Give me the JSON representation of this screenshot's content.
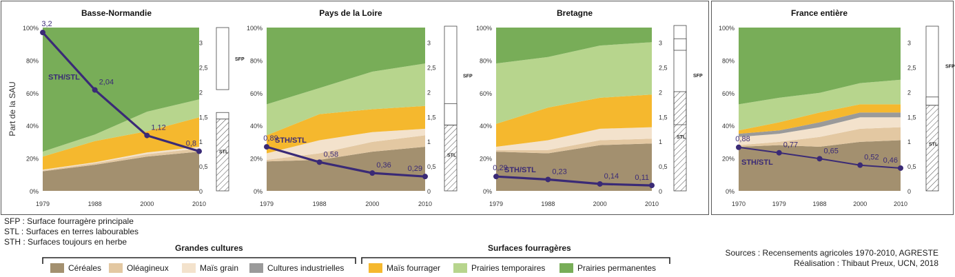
{
  "colors": {
    "cereales": "#a3906f",
    "oleagineux": "#e3c8a2",
    "mais_grain": "#f3e2cc",
    "cultures_industrielles": "#9a9a9a",
    "mais_fourrager": "#f5b82e",
    "prairies_temporaires": "#b7d58d",
    "prairies_permanentes": "#78ad58",
    "line": "#3a2a76",
    "frame": "#555555"
  },
  "notes": [
    "SFP : Surface fourragère principale",
    "STL : Surfaces en terres labourables",
    "STH : Surfaces toujours en herbe"
  ],
  "legend": {
    "groups": [
      {
        "title": "Grandes cultures",
        "items": [
          {
            "label": "Céréales",
            "key": "cereales"
          },
          {
            "label": "Oléagineux",
            "key": "oleagineux"
          },
          {
            "label": "Maïs grain",
            "key": "mais_grain"
          },
          {
            "label": "Cultures industrielles",
            "key": "cultures_industrielles"
          }
        ]
      },
      {
        "title": "Surfaces fourragères",
        "items": [
          {
            "label": "Maïs fourrager",
            "key": "mais_fourrager"
          },
          {
            "label": "Prairies temporaires",
            "key": "prairies_temporaires"
          },
          {
            "label": "Prairies permanentes",
            "key": "prairies_permanentes"
          }
        ]
      }
    ]
  },
  "sources": {
    "line1": "Sources : Recensements agricoles 1970-2010, AGRESTE",
    "line2": "Réalisation : Thibaut Preux, UCN, 2018"
  },
  "chart_data": [
    {
      "type": "area",
      "title": "Basse-Normandie",
      "ylabel": "Part de la SAU",
      "x": [
        "1979",
        "1988",
        "2000",
        "2010"
      ],
      "ylim": [
        0,
        100
      ],
      "y_ticks": [
        "0%",
        "20%",
        "40%",
        "60%",
        "80%",
        "100%"
      ],
      "y2_ticks": [
        "0",
        "0,5",
        "1",
        "1,5",
        "2",
        "2,5",
        "3"
      ],
      "y2lim": [
        0,
        3.3
      ],
      "series": [
        {
          "key": "cereales",
          "values": [
            12,
            16,
            21,
            24
          ]
        },
        {
          "key": "oleagineux",
          "values": [
            0.5,
            1,
            1.5,
            2
          ]
        },
        {
          "key": "mais_grain",
          "values": [
            0.5,
            0.5,
            1,
            1
          ]
        },
        {
          "key": "cultures_industrielles",
          "values": [
            0,
            0,
            0,
            0
          ]
        },
        {
          "key": "mais_fourrager",
          "values": [
            8,
            13,
            13,
            18
          ]
        },
        {
          "key": "prairies_temporaires",
          "values": [
            3,
            4,
            12,
            11
          ]
        },
        {
          "key": "prairies_permanentes",
          "values": [
            76,
            65.5,
            51.5,
            44
          ]
        }
      ],
      "ratio": {
        "label": "STH/STL",
        "values": [
          3.2,
          2.04,
          1.12,
          0.8
        ],
        "labels": [
          "3,2",
          "2,04",
          "1,12",
          "0,8"
        ],
        "label_series_at": 0
      },
      "bar": {
        "sfp_label": "SFP",
        "stl_label": "STL",
        "sfp_range": [
          0.62,
          1.0
        ],
        "stl_range": [
          0,
          0.44
        ],
        "gap_range": [
          0.44,
          0.48
        ]
      }
    },
    {
      "type": "area",
      "title": "Pays de la Loire",
      "ylabel": "",
      "x": [
        "1979",
        "1988",
        "2000",
        "2010"
      ],
      "ylim": [
        0,
        100
      ],
      "y_ticks": [
        "0%",
        "20%",
        "40%",
        "60%",
        "80%",
        "100%"
      ],
      "y2_ticks": [
        "0",
        "0,5",
        "1",
        "1,5",
        "2",
        "2,5",
        "3"
      ],
      "y2lim": [
        0,
        3.3
      ],
      "series": [
        {
          "key": "cereales",
          "values": [
            18,
            19,
            24,
            27
          ]
        },
        {
          "key": "oleagineux",
          "values": [
            1,
            4,
            6,
            7
          ]
        },
        {
          "key": "mais_grain",
          "values": [
            4,
            8,
            6,
            4
          ]
        },
        {
          "key": "cultures_industrielles",
          "values": [
            0,
            0,
            0,
            0
          ]
        },
        {
          "key": "mais_fourrager",
          "values": [
            11,
            16,
            14,
            14
          ]
        },
        {
          "key": "prairies_temporaires",
          "values": [
            19,
            16,
            23,
            26
          ]
        },
        {
          "key": "prairies_permanentes",
          "values": [
            47,
            37,
            27,
            22
          ]
        }
      ],
      "ratio": {
        "label": "STH/STL",
        "values": [
          0.89,
          0.58,
          0.36,
          0.29
        ],
        "labels": [
          "0,89",
          "0,58",
          "0,36",
          "0,29"
        ],
        "label_series_at": 0
      },
      "bar": {
        "sfp_label": "SFP",
        "stl_label": "STL",
        "sfp_range": [
          0.4,
          1.0
        ],
        "stl_range": [
          0,
          0.4
        ],
        "gap_range": [
          0.4,
          0.53
        ]
      }
    },
    {
      "type": "area",
      "title": "Bretagne",
      "ylabel": "",
      "x": [
        "1979",
        "1988",
        "2000",
        "2010"
      ],
      "ylim": [
        0,
        100
      ],
      "y_ticks": [
        "0%",
        "20%",
        "40%",
        "60%",
        "80%",
        "100%"
      ],
      "y2_ticks": [
        "0",
        "0,5",
        "1",
        "1,5",
        "2",
        "2,5",
        "3"
      ],
      "y2lim": [
        0,
        3.3
      ],
      "series": [
        {
          "key": "cereales",
          "values": [
            24,
            23,
            28,
            29
          ]
        },
        {
          "key": "oleagineux",
          "values": [
            1,
            2,
            3,
            3
          ]
        },
        {
          "key": "mais_grain",
          "values": [
            2,
            6,
            7,
            7
          ]
        },
        {
          "key": "cultures_industrielles",
          "values": [
            0,
            0,
            0,
            0
          ]
        },
        {
          "key": "mais_fourrager",
          "values": [
            14,
            20,
            19,
            20
          ]
        },
        {
          "key": "prairies_temporaires",
          "values": [
            37,
            31,
            32,
            32
          ]
        },
        {
          "key": "prairies_permanentes",
          "values": [
            22,
            18,
            11,
            9
          ]
        }
      ],
      "ratio": {
        "label": "STH/STL",
        "values": [
          0.29,
          0.23,
          0.14,
          0.11
        ],
        "labels": [
          "0,29",
          "0,23",
          "0,14",
          "0,11"
        ],
        "label_series_at": 0
      },
      "bar": {
        "sfp_label": "SFP",
        "stl_label": "STL",
        "sfp_range": [
          0.4,
          1.0
        ],
        "stl_range": [
          0,
          0.6
        ],
        "gap_range": [
          0.85,
          0.92
        ]
      }
    },
    {
      "type": "area",
      "title": "France entière",
      "ylabel": "",
      "x": [
        "1970",
        "1979",
        "1988",
        "2000",
        "2010"
      ],
      "ylim": [
        0,
        100
      ],
      "y_ticks": [
        "0%",
        "20%",
        "40%",
        "60%",
        "80%",
        "100%"
      ],
      "y2_ticks": [
        "0",
        "0,5",
        "1",
        "1,5",
        "2",
        "2,5",
        "3"
      ],
      "y2lim": [
        0,
        3.3
      ],
      "series": [
        {
          "key": "cereales",
          "values": [
            27,
            28,
            27,
            30,
            31
          ]
        },
        {
          "key": "oleagineux",
          "values": [
            1,
            2,
            6,
            8,
            8
          ]
        },
        {
          "key": "mais_grain",
          "values": [
            5,
            5,
            6,
            7,
            6
          ]
        },
        {
          "key": "cultures_industrielles",
          "values": [
            2,
            2,
            3,
            3,
            3
          ]
        },
        {
          "key": "mais_fourrager",
          "values": [
            2,
            5,
            6,
            5,
            5
          ]
        },
        {
          "key": "prairies_temporaires",
          "values": [
            16,
            15,
            12,
            13,
            15
          ]
        },
        {
          "key": "prairies_permanentes",
          "values": [
            47,
            43,
            40,
            34,
            32
          ]
        }
      ],
      "ratio": {
        "label": "STH/STL",
        "values": [
          0.88,
          0.77,
          0.65,
          0.52,
          0.46
        ],
        "labels": [
          "0,88",
          "0,77",
          "0,65",
          "0,52",
          "0,46"
        ],
        "label_series_at": 1
      },
      "bar": {
        "sfp_label": "SFP",
        "stl_label": "STL",
        "sfp_range": [
          0.52,
          1.0
        ],
        "stl_range": [
          0,
          0.52
        ],
        "gap_range": [
          0.52,
          0.57
        ]
      }
    }
  ]
}
